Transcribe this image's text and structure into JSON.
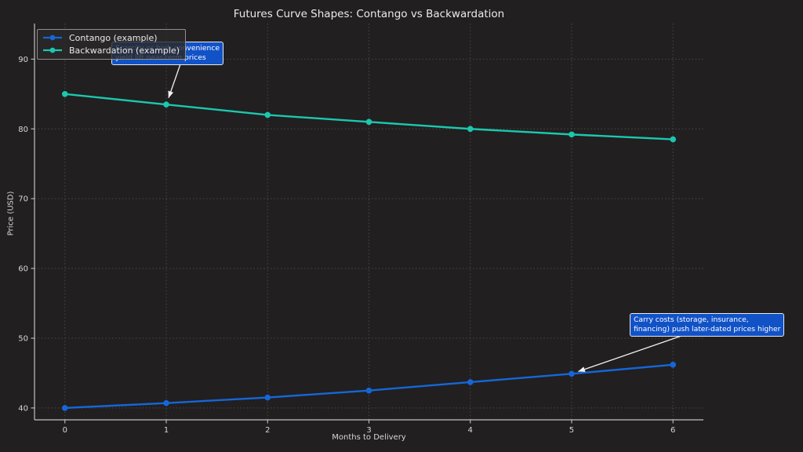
{
  "chart_data": {
    "type": "line",
    "title": "Futures Curve Shapes: Contango vs Backwardation",
    "xlabel": "Months to Delivery",
    "ylabel": "Price (USD)",
    "x": [
      0,
      1,
      2,
      3,
      4,
      5,
      6
    ],
    "xticks": [
      0,
      1,
      2,
      3,
      4,
      5,
      6
    ],
    "yticks": [
      40,
      50,
      60,
      70,
      80,
      90
    ],
    "xlim": [
      -0.3,
      6.3
    ],
    "ylim": [
      38.3,
      95.1
    ],
    "grid": true,
    "legend_position": "upper-left",
    "series": [
      {
        "name": "Contango (example)",
        "color": "#1567d8",
        "marker": "circle",
        "values": [
          40.0,
          40.7,
          41.5,
          42.5,
          43.7,
          44.9,
          46.2
        ]
      },
      {
        "name": "Backwardation (example)",
        "color": "#1bc8ae",
        "marker": "circle",
        "values": [
          85.0,
          83.5,
          82.0,
          81.0,
          80.0,
          79.2,
          78.5
        ]
      }
    ],
    "annotations": [
      {
        "name": "backwardation-note",
        "lines": [
          "Scarcity or high convenience",
          "yield lift near-term prices"
        ],
        "box_left": 142,
        "box_top": 53,
        "arrow_from_x": 231,
        "arrow_from_y": 79,
        "target_series": 1,
        "target_index": 1
      },
      {
        "name": "contango-note",
        "lines": [
          "Carry costs (storage, insurance,",
          "financing) push later-dated prices higher"
        ],
        "box_left": 803,
        "box_top": 399,
        "arrow_from_x": 869,
        "arrow_from_y": 428,
        "target_series": 0,
        "target_index": 5
      }
    ],
    "theme": {
      "background": "#211f20",
      "text_color": "#ebe9ea",
      "tick_color": "#d8d6d7",
      "grid_color": "#4a4848",
      "spine_color": "#c2c0c1",
      "annotation_bg": "#1252c7",
      "annotation_border": "#e9e9e9",
      "arrow_color": "#f2f2f2",
      "legend_bg": "rgba(42,40,41,0.82)",
      "legend_border": "#909090"
    }
  }
}
